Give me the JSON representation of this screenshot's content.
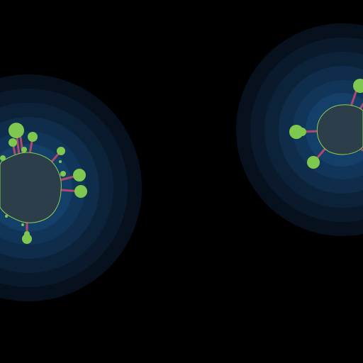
{
  "scene": {
    "background": "#000000",
    "colors": {
      "aura_rings": [
        "#07111d",
        "#0a1a2c",
        "#0c2238",
        "#0f2c4a",
        "#113559",
        "#143f68"
      ],
      "cell_body": "#2d3e4b",
      "cell_outline": "#86d052",
      "nutrient": "#7ec850",
      "tendril": "#b0486d"
    },
    "cells": [
      {
        "name": "cell-left",
        "tendril_count": 12,
        "nutrient_count": 14
      },
      {
        "name": "cell-right",
        "tendril_count": 5,
        "nutrient_count": 4
      }
    ]
  }
}
